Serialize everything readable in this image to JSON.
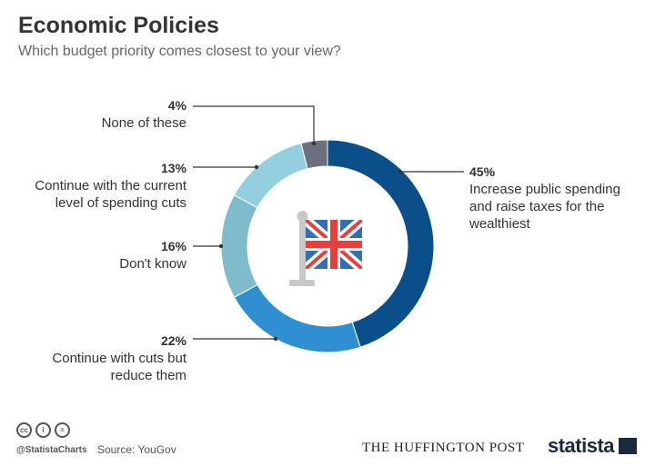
{
  "header": {
    "title": "Economic Policies",
    "subtitle": "Which budget priority comes closest to your view?"
  },
  "colors": {
    "background": "#ffffff",
    "slices": [
      "#0b4f8a",
      "#2f8fd0",
      "#7fbccb",
      "#92d0e0",
      "#6c6f7d"
    ],
    "ring_inner": "#ffffff",
    "leader": "#333333"
  },
  "chart_data": {
    "type": "pie",
    "variant": "donut",
    "title": "Economic Policies",
    "subtitle": "Which budget priority comes closest to your view?",
    "unit": "%",
    "slices": [
      {
        "label": "Increase public spending and raise taxes for the wealthiest",
        "lines": [
          "Increase public spending",
          "and raise taxes for the",
          "wealthiest"
        ],
        "value": 45,
        "display": "45%"
      },
      {
        "label": "Continue with cuts but reduce them",
        "lines": [
          "Continue with cuts but",
          "reduce them"
        ],
        "value": 22,
        "display": "22%"
      },
      {
        "label": "Don't know",
        "lines": [
          "Don't know"
        ],
        "value": 16,
        "display": "16%"
      },
      {
        "label": "Continue with the current level of spending cuts",
        "lines": [
          "Continue with the current",
          "level of spending cuts"
        ],
        "value": 13,
        "display": "13%"
      },
      {
        "label": "None of these",
        "lines": [
          "None of these"
        ],
        "value": 4,
        "display": "4%"
      }
    ],
    "center_icon": "uk-flag-icon"
  },
  "footer": {
    "license_icons": [
      "cc-icon",
      "person-icon",
      "equals-icon"
    ],
    "license_glyphs": [
      "cc",
      "i",
      "="
    ],
    "handle": "@StatistaCharts",
    "source": "Source: YouGov",
    "partner": "THE HUFFINGTON POST",
    "brand": "statista"
  }
}
